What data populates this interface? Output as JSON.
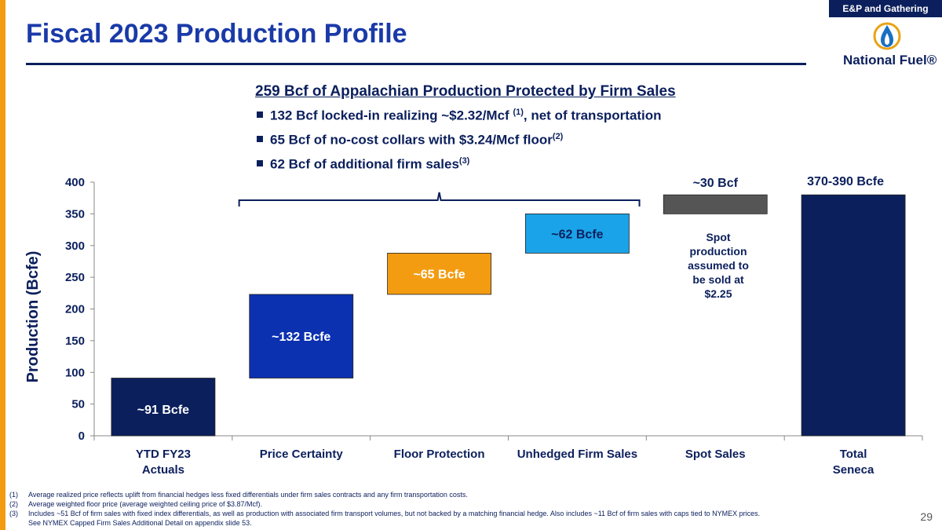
{
  "header": {
    "tag": "E&P and Gathering",
    "title": "Fiscal 2023 Production Profile",
    "logo_text": "National Fuel®"
  },
  "summary": {
    "headline": "259 Bcf of Appalachian Production Protected by Firm Sales",
    "bullets": [
      {
        "text": "132 Bcf locked-in realizing ~$2.32/Mcf ",
        "sup": "(1)",
        "tail": ", net of transportation"
      },
      {
        "text": "65 Bcf of no-cost collars with $3.24/Mcf floor",
        "sup": "(2)",
        "tail": ""
      },
      {
        "text": "62 Bcf of additional firm sales",
        "sup": "(3)",
        "tail": ""
      }
    ]
  },
  "chart_data": {
    "type": "bar",
    "subtype": "waterfall",
    "ylabel": "Production (Bcfe)",
    "ylim": [
      0,
      400
    ],
    "yticks": [
      0,
      50,
      100,
      150,
      200,
      250,
      300,
      350,
      400
    ],
    "categories": [
      "YTD FY23 Actuals",
      "Price Certainty",
      "Floor Protection",
      "Unhedged Firm Sales",
      "Spot Sales",
      "Total Seneca"
    ],
    "category_lines": [
      [
        "YTD FY23",
        "Actuals"
      ],
      [
        "Price Certainty"
      ],
      [
        "Floor Protection"
      ],
      [
        "Unhedged Firm Sales"
      ],
      [
        "Spot Sales"
      ],
      [
        "Total",
        "Seneca"
      ]
    ],
    "bars": [
      {
        "base": 0,
        "value": 91,
        "label": "~91 Bcfe",
        "color": "#0b1f5c",
        "label_color": "#ffffff"
      },
      {
        "base": 91,
        "value": 132,
        "label": "~132 Bcfe",
        "color": "#0b30b0",
        "label_color": "#ffffff"
      },
      {
        "base": 223,
        "value": 65,
        "label": "~65 Bcfe",
        "color": "#f39c12",
        "label_color": "#ffffff"
      },
      {
        "base": 288,
        "value": 62,
        "label": "~62 Bcfe",
        "color": "#1aa3e8",
        "label_color": "#0b1f5c"
      },
      {
        "base": 350,
        "value": 30,
        "label": "~30 Bcf",
        "color": "#555555",
        "label_color": "#0b1f5c"
      },
      {
        "base": 0,
        "value": 380,
        "label": "370-390 Bcfe",
        "color": "#0b1f5c",
        "label_color": "#0b1f5c"
      }
    ],
    "spot_note": [
      "Spot",
      "production",
      "assumed to",
      "be sold at",
      "$2.25"
    ],
    "grid": false,
    "legend": "none"
  },
  "footnotes": [
    {
      "n": "(1)",
      "text": "Average realized price reflects uplift from financial hedges less fixed differentials under firm sales contracts and any firm transportation costs."
    },
    {
      "n": "(2)",
      "text": "Average weighted floor price (average weighted ceiling price of $3.87/Mcf)."
    },
    {
      "n": "(3)",
      "text": "Includes ~51 Bcf of firm sales with fixed index differentials, as well as production with associated firm transport volumes, but not backed by a matching financial hedge. Also includes ~11 Bcf of firm sales with caps tied to NYMEX prices."
    },
    {
      "n": "",
      "text": "See NYMEX Capped Firm Sales Additional Detail on appendix slide 53."
    }
  ],
  "page_number": "29",
  "colors": {
    "navy": "#0b1f5c",
    "accent_blue": "#1a3aa8",
    "orange": "#f39c12"
  }
}
